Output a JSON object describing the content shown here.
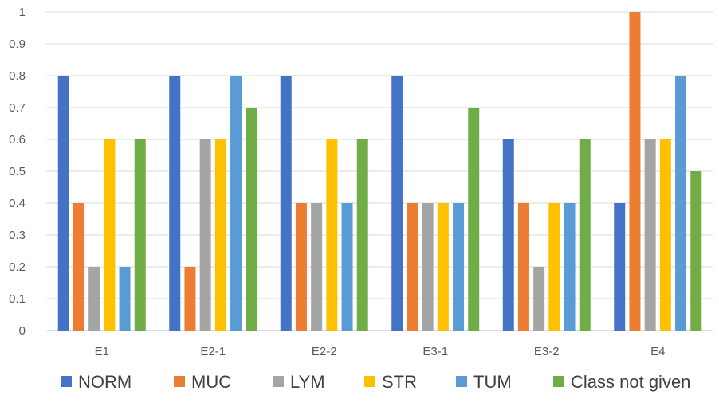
{
  "chart_data": {
    "type": "bar",
    "categories": [
      "E1",
      "E2-1",
      "E2-2",
      "E3-1",
      "E3-2",
      "E4"
    ],
    "series": [
      {
        "name": "NORM",
        "color": "#4472C4",
        "values": [
          0.8,
          0.8,
          0.8,
          0.8,
          0.6,
          0.4
        ]
      },
      {
        "name": "MUC",
        "color": "#ED7D31",
        "values": [
          0.4,
          0.2,
          0.4,
          0.4,
          0.4,
          1.0
        ]
      },
      {
        "name": "LYM",
        "color": "#A5A5A5",
        "values": [
          0.2,
          0.6,
          0.4,
          0.4,
          0.2,
          0.6
        ]
      },
      {
        "name": "STR",
        "color": "#FFC000",
        "values": [
          0.6,
          0.6,
          0.6,
          0.4,
          0.4,
          0.6
        ]
      },
      {
        "name": "TUM",
        "color": "#5B9BD5",
        "values": [
          0.2,
          0.8,
          0.4,
          0.4,
          0.4,
          0.8
        ]
      },
      {
        "name": "Class not given",
        "color": "#70AD47",
        "values": [
          0.6,
          0.7,
          0.6,
          0.7,
          0.6,
          0.5
        ]
      }
    ],
    "yticks": [
      "0",
      "0.1",
      "0.2",
      "0.3",
      "0.4",
      "0.5",
      "0.6",
      "0.7",
      "0.8",
      "0.9",
      "1"
    ],
    "ylim": [
      0,
      1
    ],
    "grid": true,
    "legend": "bottom"
  }
}
